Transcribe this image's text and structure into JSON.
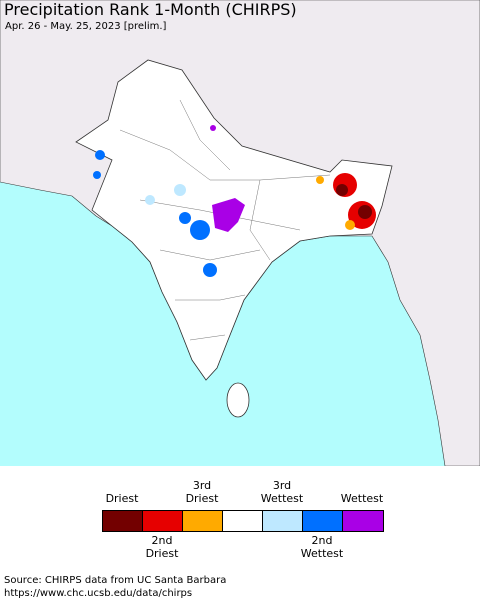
{
  "header": {
    "title": "Precipitation Rank 1-Month (CHIRPS)",
    "subtitle": "Apr. 26 - May. 25, 2023 [prelim.]"
  },
  "legend": {
    "colors": [
      "#730000",
      "#e60000",
      "#ffaa00",
      "#ffffff",
      "#bee8ff",
      "#0070ff",
      "#a900e6"
    ],
    "top_labels": [
      "Driest",
      "3rd Driest",
      "3rd Wettest",
      "Wettest"
    ],
    "bottom_labels": [
      "2nd Driest",
      "2nd Wettest"
    ]
  },
  "footer": {
    "source": "Source: CHIRPS data from UC Santa Barbara",
    "url": "https://www.chc.ucsb.edu/data/chirps"
  }
}
